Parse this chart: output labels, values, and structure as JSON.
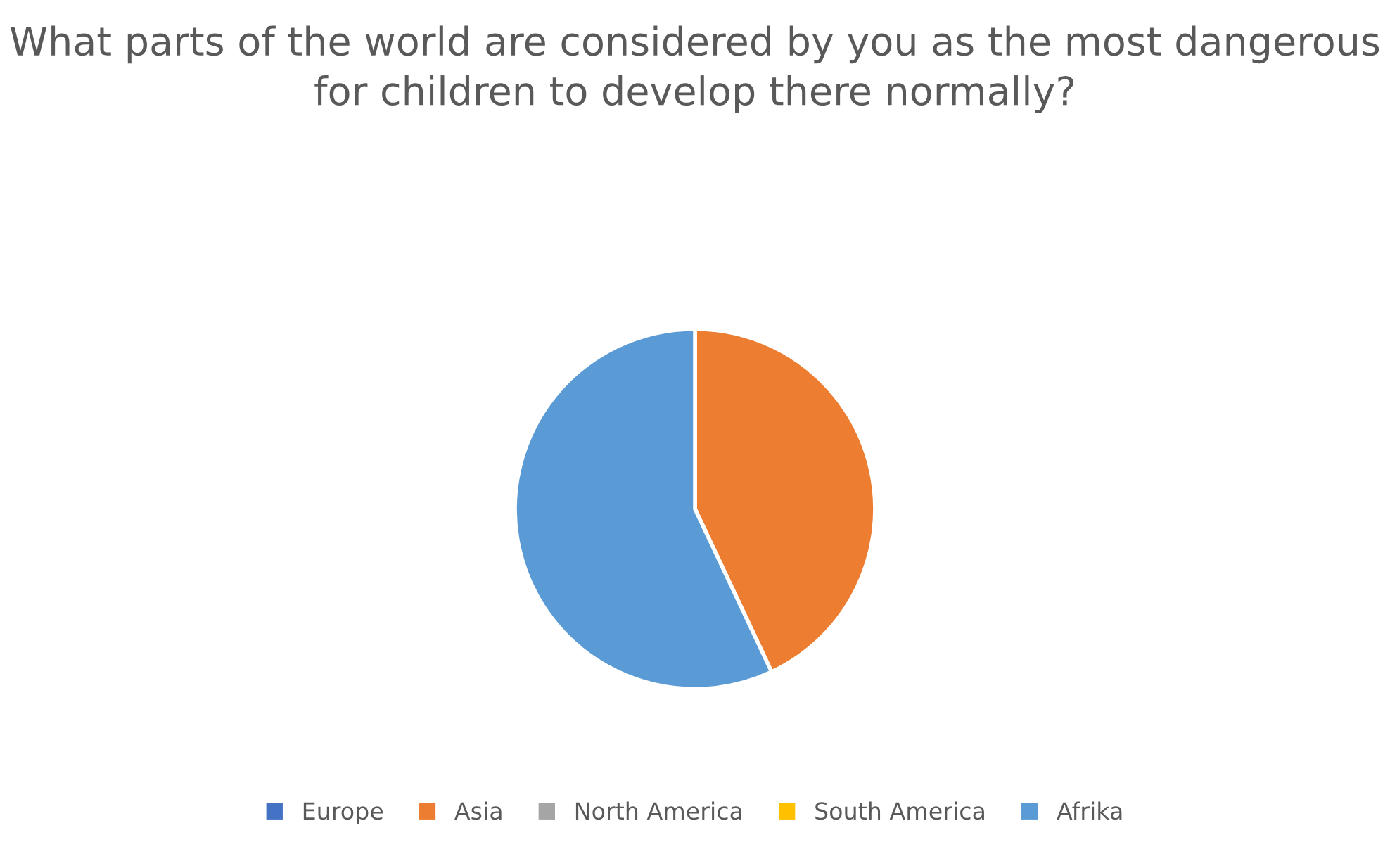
{
  "chart_data": {
    "type": "pie",
    "title": "What parts of the world are considered by you as the most dangerous for children to develop there normally?",
    "categories": [
      "Europe",
      "Asia",
      "North America",
      "South America",
      "Afrika"
    ],
    "values": [
      0,
      43,
      0,
      0,
      57
    ],
    "colors": [
      "#4472c4",
      "#ed7d31",
      "#a5a5a5",
      "#ffc000",
      "#5b9bd5"
    ],
    "legend": "bottom"
  }
}
